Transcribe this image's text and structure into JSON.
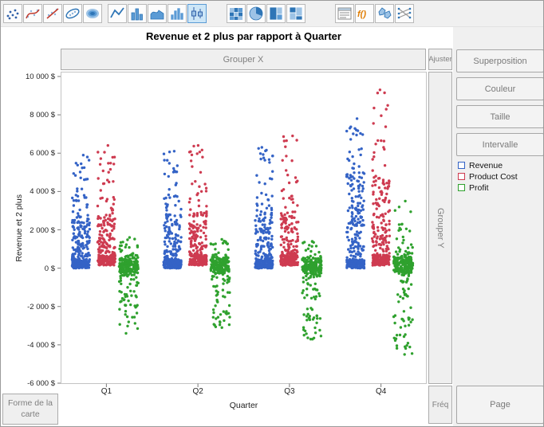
{
  "toolbar": {
    "icons": [
      {
        "name": "points"
      },
      {
        "name": "smoother"
      },
      {
        "name": "line-of-fit"
      },
      {
        "name": "ellipse"
      },
      {
        "name": "contour"
      },
      {
        "name": "line"
      },
      {
        "name": "bar"
      },
      {
        "name": "area"
      },
      {
        "name": "histogram"
      },
      {
        "name": "box-plot",
        "selected": true
      },
      {
        "name": "heatmap"
      },
      {
        "name": "pie"
      },
      {
        "name": "treemap"
      },
      {
        "name": "mosaic"
      },
      {
        "name": "caption-box"
      },
      {
        "name": "formula"
      },
      {
        "name": "map-shapes"
      },
      {
        "name": "parallel-plot"
      }
    ]
  },
  "zones": {
    "group_x": "Grouper X",
    "adjust": "Ajuster",
    "group_y": "Grouper Y",
    "freq": "Fréq",
    "map_shape": "Forme de la carte",
    "overlay": "Superposition",
    "color": "Couleur",
    "size": "Taille",
    "interval": "Intervalle",
    "page": "Page"
  },
  "legend": [
    {
      "label": "Revenue",
      "color": "#3463C6"
    },
    {
      "label": "Product Cost",
      "color": "#CE3B50"
    },
    {
      "label": "Profit",
      "color": "#2FA12E"
    }
  ],
  "chart_data": {
    "type": "scatter",
    "variant": "jittered-points-by-category",
    "title": "Revenue et 2 plus par rapport à Quarter",
    "xlabel": "Quarter",
    "ylabel": "Revenue et 2 plus",
    "categories": [
      "Q1",
      "Q2",
      "Q3",
      "Q4"
    ],
    "ylim": [
      -6000,
      10000
    ],
    "ytick_step": 2000,
    "ytick_labels": [
      "10 000 $",
      "8 000 $",
      "6 000 $",
      "4 000 $",
      "2 000 $",
      "0 $",
      "-2 000 $",
      "-4 000 $",
      "-6 000 $"
    ],
    "grid": false,
    "legend_position": "right",
    "series": [
      {
        "name": "Revenue",
        "color": "#3463C6",
        "pattern": "right-skewed-stack",
        "x_offset": -32,
        "jitter_halfwidth": 11,
        "by_quarter": [
          {
            "quarter": "Q1",
            "n": 300,
            "min": 0,
            "base_to": 450,
            "dense_to": 2700,
            "max": 5900
          },
          {
            "quarter": "Q2",
            "n": 300,
            "min": 0,
            "base_to": 450,
            "dense_to": 2800,
            "max": 6100
          },
          {
            "quarter": "Q3",
            "n": 300,
            "min": 0,
            "base_to": 450,
            "dense_to": 3000,
            "max": 6300
          },
          {
            "quarter": "Q4",
            "n": 310,
            "min": 0,
            "base_to": 450,
            "dense_to": 5000,
            "max": 7800
          }
        ]
      },
      {
        "name": "Product Cost",
        "color": "#CE3B50",
        "pattern": "right-skewed-stack",
        "x_offset": 0,
        "jitter_halfwidth": 11,
        "by_quarter": [
          {
            "quarter": "Q1",
            "n": 270,
            "min": 150,
            "base_to": 700,
            "dense_to": 2800,
            "max": 6400
          },
          {
            "quarter": "Q2",
            "n": 270,
            "min": 150,
            "base_to": 700,
            "dense_to": 2900,
            "max": 6400
          },
          {
            "quarter": "Q3",
            "n": 270,
            "min": 150,
            "base_to": 700,
            "dense_to": 3000,
            "max": 6900
          },
          {
            "quarter": "Q4",
            "n": 280,
            "min": 150,
            "base_to": 700,
            "dense_to": 4800,
            "max": 9300
          }
        ]
      },
      {
        "name": "Profit",
        "color": "#2FA12E",
        "pattern": "centered",
        "x_offset": 28,
        "jitter_halfwidth": 12,
        "by_quarter": [
          {
            "quarter": "Q1",
            "n": 260,
            "min": -3400,
            "max": 1600,
            "center": 150,
            "core_spread": 650
          },
          {
            "quarter": "Q2",
            "n": 260,
            "min": -3100,
            "max": 1500,
            "center": 150,
            "core_spread": 600
          },
          {
            "quarter": "Q3",
            "n": 260,
            "min": -3700,
            "max": 1400,
            "center": 100,
            "core_spread": 650
          },
          {
            "quarter": "Q4",
            "n": 270,
            "min": -4500,
            "max": 3500,
            "center": 200,
            "core_spread": 800
          }
        ]
      }
    ]
  }
}
